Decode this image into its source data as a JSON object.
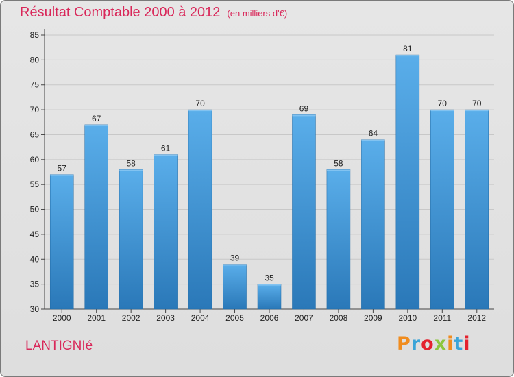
{
  "header": {
    "title": "Résultat Comptable 2000 à 2012",
    "subtitle": "(en milliers d'€)"
  },
  "footer": {
    "commune": "LANTIGNIé",
    "brand": "Proxiti",
    "brand_colors": [
      "#f08c1e",
      "#3aa4d8",
      "#e4222e",
      "#8cc63f",
      "#f08c1e",
      "#3aa4d8",
      "#e4222e"
    ]
  },
  "colors": {
    "title": "#d9285a",
    "bar_light": "#5aaeea",
    "bar_dark": "#2a78b8",
    "grid": "#c8c8c8"
  },
  "chart_data": {
    "type": "bar",
    "title": "Résultat Comptable 2000 à 2012",
    "subtitle": "(en milliers d'€)",
    "categories": [
      "2000",
      "2001",
      "2002",
      "2003",
      "2004",
      "2005",
      "2006",
      "2007",
      "2008",
      "2009",
      "2010",
      "2011",
      "2012"
    ],
    "values": [
      57,
      67,
      58,
      61,
      70,
      39,
      35,
      69,
      58,
      64,
      81,
      70,
      70
    ],
    "ylim": [
      30,
      85
    ],
    "yticks": [
      30,
      35,
      40,
      45,
      50,
      55,
      60,
      65,
      70,
      75,
      80,
      85
    ],
    "xlabel": "",
    "ylabel": "",
    "grid": true,
    "data_labels": true
  }
}
